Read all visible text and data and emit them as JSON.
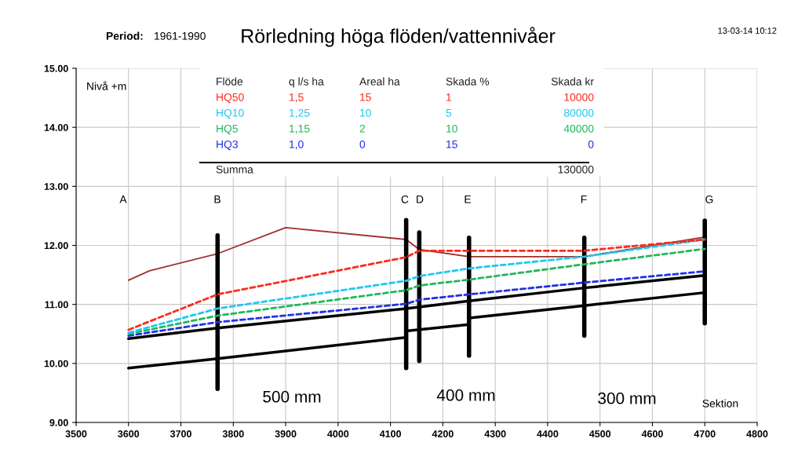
{
  "chart_data": {
    "type": "line",
    "title": "Rörledning höga flöden/vattennivåer",
    "xlabel": "Sektion",
    "ylabel": "Nivå +m",
    "xlim": [
      3500,
      4800
    ],
    "xticks": [
      3500,
      3600,
      3700,
      3800,
      3900,
      4000,
      4100,
      4200,
      4300,
      4400,
      4500,
      4600,
      4700,
      4800
    ],
    "ylim": [
      9,
      15
    ],
    "yticks": [
      {
        "value": 9,
        "label": "9.00"
      },
      {
        "value": 10,
        "label": "10.00"
      },
      {
        "value": 11,
        "label": "11.00"
      },
      {
        "value": 12,
        "label": "12.00"
      },
      {
        "value": 13,
        "label": "13.00"
      },
      {
        "value": 14,
        "label": "14.00"
      },
      {
        "value": 15,
        "label": "15.00"
      }
    ],
    "grid": true,
    "marker": "none",
    "series": [
      {
        "name": "HQ50",
        "color": "#ff2a1a",
        "line_style": "dashed",
        "x": [
          3600,
          3770,
          4130,
          4155,
          4250,
          4470,
          4700
        ],
        "values": [
          10.57,
          11.17,
          11.8,
          11.91,
          11.91,
          11.91,
          12.1
        ]
      },
      {
        "name": "HQ10",
        "color": "#1ec8f0",
        "line_style": "dashed",
        "x": [
          3600,
          3770,
          4130,
          4155,
          4250,
          4470,
          4700
        ],
        "values": [
          10.52,
          10.93,
          11.4,
          11.48,
          11.61,
          11.81,
          12.1
        ]
      },
      {
        "name": "HQ5",
        "color": "#1fb85a",
        "line_style": "dashed",
        "x": [
          3600,
          3770,
          4130,
          4155,
          4250,
          4470,
          4700
        ],
        "values": [
          10.5,
          10.81,
          11.24,
          11.32,
          11.42,
          11.68,
          11.94
        ]
      },
      {
        "name": "HQ3",
        "color": "#2030e8",
        "line_style": "dashed",
        "x": [
          3600,
          3770,
          4130,
          4155,
          4250,
          4470,
          4700
        ],
        "values": [
          10.47,
          10.7,
          11.01,
          11.08,
          11.17,
          11.37,
          11.56
        ]
      },
      {
        "color": "#a0302a",
        "line_style": "solid",
        "x": [
          3600,
          3640,
          3770,
          3900,
          4130,
          4155,
          4250,
          4470,
          4700
        ],
        "values": [
          11.41,
          11.57,
          11.86,
          12.3,
          12.1,
          11.93,
          11.81,
          11.81,
          12.14
        ]
      },
      {
        "color": "#000000",
        "line_style": "solid",
        "x": [
          3600,
          3770,
          4130,
          4250,
          4470,
          4700
        ],
        "values": [
          10.42,
          10.6,
          10.93,
          11.06,
          11.28,
          11.49
        ]
      },
      {
        "color": "#000000",
        "line_style": "solid",
        "x": [
          3600,
          3770,
          4130,
          4130,
          4250,
          4250,
          4470,
          4700
        ],
        "values": [
          9.92,
          10.08,
          10.44,
          10.55,
          10.66,
          10.77,
          10.98,
          11.2
        ]
      },
      {
        "color": "#000000",
        "line_style": "solid",
        "x": [
          3770,
          3770
        ],
        "values": [
          9.57,
          12.17
        ]
      },
      {
        "color": "#000000",
        "line_style": "solid",
        "x": [
          4130,
          4130
        ],
        "values": [
          9.92,
          12.43
        ]
      },
      {
        "color": "#000000",
        "line_style": "solid",
        "x": [
          4155,
          4155
        ],
        "values": [
          10.04,
          12.22
        ]
      },
      {
        "color": "#000000",
        "line_style": "solid",
        "x": [
          4250,
          4250
        ],
        "values": [
          10.13,
          12.13
        ]
      },
      {
        "color": "#000000",
        "line_style": "solid",
        "x": [
          4470,
          4470
        ],
        "values": [
          10.47,
          12.13
        ]
      },
      {
        "color": "#000000",
        "line_style": "solid",
        "x": [
          4700,
          4700
        ],
        "values": [
          10.68,
          12.42
        ]
      }
    ],
    "annotations": [
      "Period:",
      "1961-1990",
      "13-03-14 10:12",
      "Flöde",
      "q l/s ha",
      "Areal ha",
      "Skada %",
      "Skada kr",
      "1,5",
      "15",
      "1",
      "10000",
      "1,25",
      "10",
      "5",
      "80000",
      "1,15",
      "2",
      "10",
      "40000",
      "1,0",
      "0",
      "15",
      "0",
      "Summa",
      "130000",
      "A",
      "B",
      "C",
      "D",
      "E",
      "F",
      "G",
      "500 mm",
      "400 mm",
      "300 mm"
    ]
  }
}
